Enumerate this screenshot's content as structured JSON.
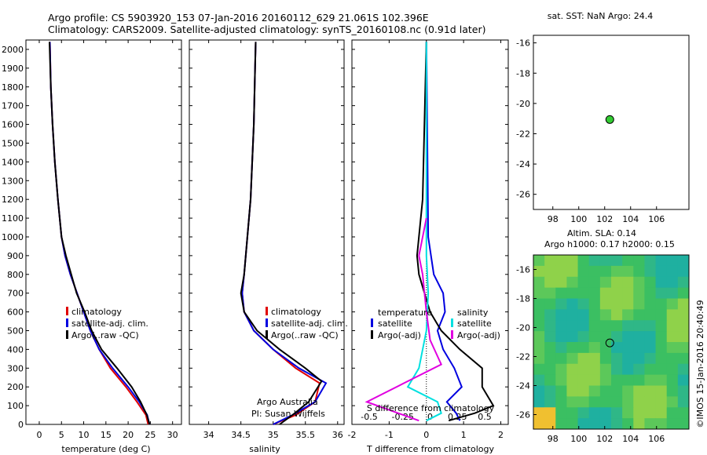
{
  "header": {
    "line1": "Argo profile: CS 5903920_153 07-Jan-2016 20160112_629 21.061S 102.396E",
    "line2": "Climatology: CARS2009. Satellite-adjusted climatology: synTS_20160108.nc (0.91d later)"
  },
  "colors": {
    "climatology": "#e00000",
    "satellite": "#0000e0",
    "argo": "#000000",
    "cyan": "#00e0e0",
    "magenta": "#e000e0"
  },
  "chart_data": [
    {
      "type": "line",
      "id": "temperature",
      "xlabel": "temperature (deg C)",
      "ylabel": "",
      "xlim": [
        -3,
        32
      ],
      "ylim": [
        2050,
        0
      ],
      "xticks": [
        0,
        5,
        10,
        15,
        20,
        25,
        30
      ],
      "yticks": [
        0,
        100,
        200,
        300,
        400,
        500,
        600,
        700,
        800,
        900,
        1000,
        1100,
        1200,
        1300,
        1400,
        1500,
        1600,
        1700,
        1800,
        1900,
        2000
      ],
      "legend": [
        "climatology",
        "satellite-adj. clim.",
        "Argo(..raw -QC)"
      ],
      "series": [
        {
          "name": "climatology",
          "color": "#e00000",
          "x": [
            24.5,
            24.0,
            22.0,
            19.5,
            16.0,
            13.5,
            11.5,
            10.0,
            8.5,
            7.0,
            5.8,
            5.0,
            4.2,
            3.5,
            3.0,
            2.6,
            2.4
          ],
          "y": [
            0,
            50,
            120,
            200,
            300,
            400,
            500,
            600,
            700,
            800,
            900,
            1000,
            1200,
            1400,
            1600,
            1800,
            2040
          ]
        },
        {
          "name": "satellite-adj. clim.",
          "color": "#0000e0",
          "x": [
            24.8,
            24.3,
            22.5,
            20.0,
            16.5,
            13.5,
            11.5,
            10.0,
            8.5,
            7.0,
            5.8,
            5.0,
            4.2,
            3.5,
            3.0,
            2.6,
            2.4
          ],
          "y": [
            0,
            50,
            120,
            200,
            300,
            400,
            500,
            600,
            700,
            800,
            900,
            1000,
            1200,
            1400,
            1600,
            1800,
            2040
          ]
        },
        {
          "name": "Argo(..raw -QC)",
          "color": "#000000",
          "x": [
            24.8,
            24.2,
            22.8,
            20.8,
            17.5,
            14.0,
            11.8,
            10.2,
            8.4,
            7.2,
            6.0,
            5.0,
            4.2,
            3.5,
            3.0,
            2.6,
            2.3
          ],
          "y": [
            0,
            50,
            120,
            200,
            300,
            400,
            500,
            600,
            700,
            800,
            900,
            1000,
            1200,
            1400,
            1600,
            1800,
            2040
          ]
        }
      ]
    },
    {
      "type": "line",
      "id": "salinity",
      "xlabel": "salinity",
      "xlim": [
        33.7,
        36.1
      ],
      "ylim": [
        2050,
        0
      ],
      "xticks": [
        34,
        34.5,
        35,
        35.5,
        36
      ],
      "legend": [
        "climatology",
        "satellite-adj. clim.",
        "Argo(..raw -QC)"
      ],
      "annotation": [
        "Argo Australia",
        "PI: Susan Wijffels"
      ],
      "series": [
        {
          "name": "climatology",
          "color": "#e00000",
          "x": [
            35.0,
            35.35,
            35.65,
            35.72,
            35.35,
            35.0,
            34.7,
            34.55,
            34.52,
            34.55,
            34.6,
            34.65,
            34.7,
            34.72,
            34.73
          ],
          "y": [
            0,
            50,
            120,
            220,
            300,
            400,
            500,
            600,
            700,
            800,
            1000,
            1200,
            1600,
            1900,
            2040
          ]
        },
        {
          "name": "satellite-adj. clim.",
          "color": "#0000e0",
          "x": [
            35.0,
            35.3,
            35.65,
            35.82,
            35.4,
            35.0,
            34.7,
            34.55,
            34.52,
            34.55,
            34.6,
            34.65,
            34.7,
            34.72,
            34.73
          ],
          "y": [
            0,
            50,
            120,
            220,
            300,
            400,
            500,
            600,
            700,
            800,
            1000,
            1200,
            1600,
            1900,
            2040
          ]
        },
        {
          "name": "Argo(..raw -QC)",
          "color": "#000000",
          "x": [
            35.1,
            35.3,
            35.55,
            35.75,
            35.5,
            35.1,
            34.75,
            34.55,
            34.5,
            34.55,
            34.6,
            34.65,
            34.7,
            34.72,
            34.73
          ],
          "y": [
            0,
            50,
            120,
            230,
            300,
            400,
            500,
            600,
            700,
            800,
            1000,
            1200,
            1600,
            1900,
            2040
          ]
        }
      ]
    },
    {
      "type": "line",
      "id": "difference",
      "xlabel": "T difference from climatology",
      "xlabel_top": "S difference from climatology",
      "xlim": [
        -2.0,
        2.2
      ],
      "ylim": [
        2050,
        0
      ],
      "xticks": [
        -2,
        -1,
        0,
        1,
        2
      ],
      "xticks_top": [
        "-0.5",
        "-0.25",
        "0",
        "0.25",
        "0.5"
      ],
      "legend_title_left": "temperature",
      "legend_title_right": "salinity",
      "legend": [
        "satellite",
        "Argo(-adj)",
        "satellite",
        "Argo(-adj)"
      ],
      "series": [
        {
          "name": "T satellite",
          "color": "#0000e0",
          "x": [
            0.9,
            0.8,
            0.55,
            0.95,
            0.75,
            0.45,
            0.3,
            0.5,
            0.45,
            0.2,
            0.05,
            0.0
          ],
          "y": [
            20,
            60,
            120,
            200,
            300,
            400,
            500,
            600,
            700,
            800,
            1000,
            2040
          ]
        },
        {
          "name": "T Argo(-adj)",
          "color": "#000000",
          "x": [
            0.6,
            1.3,
            1.8,
            1.5,
            1.5,
            0.9,
            0.4,
            0.1,
            -0.05,
            -0.2,
            -0.25,
            -0.1,
            0.0
          ],
          "y": [
            20,
            60,
            100,
            200,
            300,
            400,
            500,
            600,
            700,
            800,
            900,
            1200,
            2040
          ]
        },
        {
          "name": "S satellite",
          "color": "#00e0e0",
          "x": [
            0.0,
            0.4,
            0.3,
            -0.5,
            -0.2,
            0.0,
            0.05,
            0.0,
            0.0
          ],
          "y": [
            20,
            60,
            120,
            200,
            300,
            500,
            700,
            900,
            2040
          ]
        },
        {
          "name": "S Argo(-adj)",
          "color": "#e000e0",
          "x": [
            -0.2,
            -1.6,
            -0.6,
            0.4,
            0.1,
            0.0,
            -0.1,
            -0.2,
            0.0
          ],
          "y": [
            20,
            120,
            220,
            320,
            450,
            600,
            800,
            900,
            1100
          ]
        }
      ]
    },
    {
      "type": "scatter",
      "id": "map-sst",
      "title": "sat. SST: NaN Argo: 24.4",
      "xlim": [
        96.5,
        108.5
      ],
      "ylim": [
        -27,
        -15.5
      ],
      "xticks": [
        98,
        100,
        102,
        104,
        106
      ],
      "yticks": [
        -16,
        -18,
        -20,
        -22,
        -24,
        -26
      ],
      "points": [
        {
          "x": 102.396,
          "y": -21.061,
          "color": "#33cc33"
        }
      ]
    },
    {
      "type": "heatmap",
      "id": "map-sla",
      "title_line1": "Altim. SLA: 0.14",
      "title_line2": "Argo h1000: 0.17 h2000: 0.15",
      "side_label": "©IMOS 15-Jan-2016 20:40:49",
      "xlim": [
        96.5,
        108.5
      ],
      "ylim": [
        -27,
        -15
      ],
      "xticks": [
        98,
        100,
        102,
        104,
        106
      ],
      "yticks": [
        -16,
        -18,
        -20,
        -22,
        -24,
        -26
      ],
      "points": [
        {
          "x": 102.396,
          "y": -21.061
        }
      ]
    }
  ]
}
